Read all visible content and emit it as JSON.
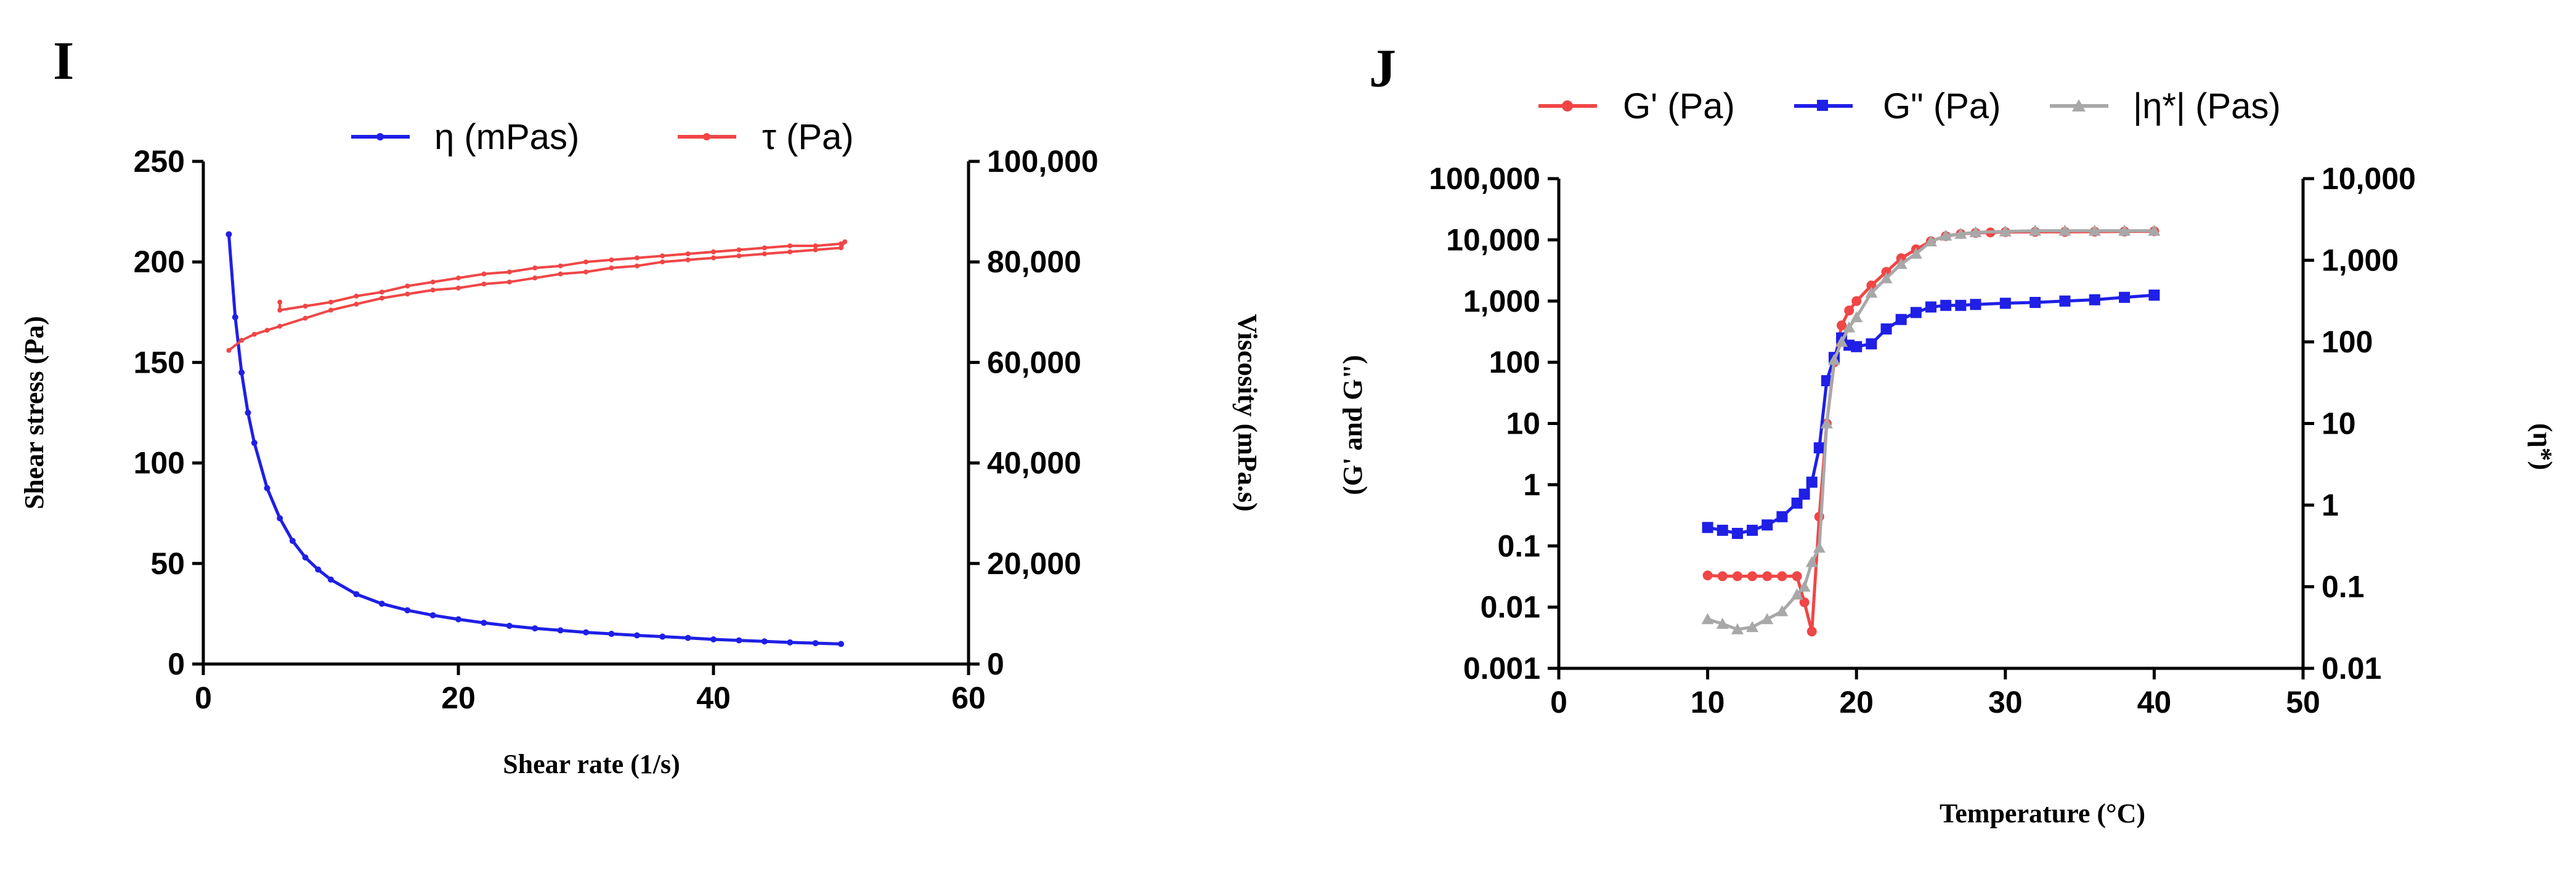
{
  "panels": [
    {
      "label": "I",
      "legend": [
        "η (mPas)",
        "τ (Pa)"
      ],
      "xlabel": "Shear rate (1/s)",
      "ylabel_left": "Shear stress (Pa)",
      "ylabel_right": "Viscosity (mPa.s)"
    },
    {
      "label": "J",
      "legend": [
        "G'  (Pa)",
        "G\" (Pa)",
        "|η*| (Pas)"
      ],
      "xlabel": "Temperature (°C)",
      "ylabel_left": "(G' and G\")",
      "ylabel_right": "(η*)"
    }
  ],
  "chart_data": [
    {
      "type": "line",
      "panel": "I",
      "xlabel": "Shear rate (1/s)",
      "ylabel": "Shear stress (Pa)",
      "y2label": "Viscosity (mPa.s)",
      "xlim": [
        0,
        60
      ],
      "ylim": [
        0,
        250
      ],
      "y2lim": [
        0,
        100000
      ],
      "xticks": [
        "0",
        "20",
        "40",
        "60"
      ],
      "yticks": [
        "0",
        "50",
        "100",
        "150",
        "200",
        "250"
      ],
      "y2ticks": [
        "0",
        "20,000",
        "40,000",
        "60,000",
        "80,000",
        "100,000"
      ],
      "legend_position": "top",
      "colors": {
        "eta": "#1f1fe6",
        "tau": "#f04646"
      },
      "series": [
        {
          "name": "η (mPas)",
          "axis": "right",
          "x": [
            2,
            2.5,
            3,
            3.5,
            4,
            5,
            6,
            7,
            8,
            9,
            10,
            12,
            14,
            16,
            18,
            20,
            22,
            24,
            26,
            28,
            30,
            32,
            34,
            36,
            38,
            40,
            42,
            44,
            46,
            48,
            50
          ],
          "y": [
            85500,
            69000,
            58000,
            50000,
            44000,
            35000,
            29000,
            24500,
            21200,
            18800,
            16800,
            13900,
            12000,
            10700,
            9700,
            8900,
            8200,
            7600,
            7100,
            6700,
            6300,
            6000,
            5700,
            5450,
            5200,
            4900,
            4700,
            4500,
            4300,
            4150,
            4000
          ]
        },
        {
          "name": "τ (Pa)",
          "axis": "left",
          "x": [
            2,
            3,
            4,
            5,
            6,
            8,
            10,
            12,
            14,
            16,
            18,
            20,
            22,
            24,
            26,
            28,
            30,
            32,
            34,
            36,
            38,
            40,
            42,
            44,
            46,
            48,
            50,
            50.3,
            50,
            48,
            46,
            44,
            42,
            40,
            38,
            36,
            34,
            32,
            30,
            28,
            26,
            24,
            22,
            20,
            18,
            16,
            14,
            12,
            10,
            8,
            6,
            6
          ],
          "y": [
            156,
            161,
            164,
            166,
            168,
            172,
            176,
            179,
            182,
            184,
            186,
            187,
            189,
            190,
            192,
            194,
            195,
            197,
            198,
            200,
            201,
            202,
            203,
            204,
            205,
            206,
            207,
            210,
            209,
            208,
            208,
            207,
            206,
            205,
            204,
            203,
            202,
            201,
            200,
            198,
            197,
            195,
            194,
            192,
            190,
            188,
            185,
            183,
            180,
            178,
            176,
            180
          ]
        }
      ]
    },
    {
      "type": "line",
      "panel": "J",
      "xlabel": "Temperature (°C)",
      "ylabel": "(G' and G\")",
      "y2label": "(η*)",
      "xlim": [
        0,
        50
      ],
      "ylim": [
        0.001,
        100000
      ],
      "y2lim": [
        0.01,
        10000
      ],
      "yscale": "log",
      "y2scale": "log",
      "xticks": [
        "0",
        "10",
        "20",
        "30",
        "40",
        "50"
      ],
      "yticks": [
        "0.001",
        "0.01",
        "0.1",
        "1",
        "10",
        "100",
        "1,000",
        "10,000",
        "100,000"
      ],
      "y2ticks": [
        "0.01",
        "0.1",
        "1",
        "10",
        "100",
        "1,000",
        "10,000"
      ],
      "legend_position": "top",
      "colors": {
        "G1": "#f04646",
        "G2": "#1f1fe6",
        "eta": "#a8a8a8"
      },
      "series": [
        {
          "name": "G'  (Pa)",
          "axis": "left",
          "x": [
            10,
            11,
            12,
            13,
            14,
            15,
            16,
            16.5,
            17,
            17.5,
            18,
            18.5,
            19,
            19.5,
            20,
            21,
            22,
            23,
            24,
            25,
            26,
            27,
            28,
            29,
            30,
            32,
            34,
            36,
            38,
            40
          ],
          "y": [
            0.033,
            0.032,
            0.032,
            0.032,
            0.032,
            0.032,
            0.032,
            0.012,
            0.004,
            0.3,
            10,
            100,
            400,
            700,
            1000,
            1800,
            3000,
            5000,
            7000,
            9500,
            11500,
            12500,
            13000,
            13200,
            13400,
            13500,
            13500,
            13600,
            13700,
            13800
          ]
        },
        {
          "name": "G\" (Pa)",
          "axis": "left",
          "x": [
            10,
            11,
            12,
            13,
            14,
            15,
            16,
            16.5,
            17,
            17.5,
            18,
            18.5,
            19,
            19.5,
            20,
            21,
            22,
            23,
            24,
            25,
            26,
            27,
            28,
            30,
            32,
            34,
            36,
            38,
            40
          ],
          "y": [
            0.2,
            0.18,
            0.16,
            0.18,
            0.22,
            0.3,
            0.5,
            0.7,
            1.1,
            4,
            50,
            120,
            250,
            190,
            180,
            200,
            350,
            500,
            650,
            800,
            850,
            850,
            880,
            920,
            950,
            1000,
            1050,
            1150,
            1250
          ]
        },
        {
          "name": "|η*| (Pas)",
          "axis": "right",
          "x": [
            10,
            11,
            12,
            13,
            14,
            15,
            16,
            16.5,
            17,
            17.5,
            18,
            18.5,
            19,
            19.5,
            20,
            21,
            22,
            23,
            24,
            25,
            26,
            27,
            28,
            30,
            32,
            34,
            36,
            38,
            40
          ],
          "y": [
            0.04,
            0.035,
            0.03,
            0.032,
            0.04,
            0.05,
            0.08,
            0.1,
            0.2,
            0.3,
            10,
            60,
            100,
            150,
            200,
            400,
            600,
            900,
            1200,
            1700,
            2000,
            2100,
            2200,
            2250,
            2300,
            2300,
            2300,
            2300,
            2300
          ]
        }
      ]
    }
  ]
}
